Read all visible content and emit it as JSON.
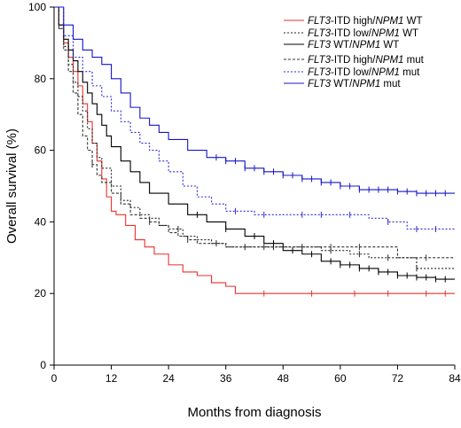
{
  "chart_data": {
    "type": "line",
    "title": "",
    "xlabel": "Months from diagnosis",
    "ylabel": "Overall survival (%)",
    "xlim": [
      0,
      84
    ],
    "ylim": [
      0,
      100
    ],
    "x_ticks": [
      "0",
      "12",
      "24",
      "36",
      "48",
      "60",
      "72",
      "84"
    ],
    "y_ticks": [
      "0",
      "20",
      "40",
      "60",
      "80",
      "100"
    ],
    "legend_position": "top-right",
    "series": [
      {
        "key": "itd_high_wt",
        "legend": [
          {
            "t": "FLT3",
            "i": true
          },
          {
            "t": "-ITD high/",
            "i": false
          },
          {
            "t": "NPM1",
            "i": true
          },
          {
            "t": " WT",
            "i": false
          }
        ],
        "color": "#e8322f",
        "dash": "solid",
        "x": [
          0,
          1,
          2,
          3,
          4,
          5,
          6,
          7,
          8,
          9,
          10,
          11,
          12,
          13,
          15,
          17,
          19,
          21,
          24,
          27,
          30,
          33,
          36,
          38,
          42,
          50,
          60,
          70,
          84
        ],
        "y": [
          100,
          95,
          90,
          86,
          82,
          78,
          73,
          68,
          62,
          57,
          52,
          47,
          43,
          42,
          39,
          35,
          33,
          31,
          28,
          26,
          25,
          23,
          22,
          20,
          20,
          20,
          20,
          20,
          20
        ],
        "censor_x": [
          44,
          54,
          63,
          70,
          78,
          82
        ]
      },
      {
        "key": "itd_low_wt",
        "legend": [
          {
            "t": "FLT3",
            "i": true
          },
          {
            "t": "-ITD low/",
            "i": false
          },
          {
            "t": "NPM1",
            "i": true
          },
          {
            "t": " WT",
            "i": false
          }
        ],
        "color": "#222222",
        "dash": "dotted",
        "x": [
          0,
          1,
          2,
          3,
          4,
          5,
          6,
          7,
          8,
          9,
          10,
          12,
          14,
          16,
          18,
          20,
          22,
          24,
          27,
          30,
          33,
          36,
          40,
          44,
          48,
          56,
          62,
          66,
          72,
          76,
          84
        ],
        "y": [
          100,
          94,
          89,
          84,
          79,
          75,
          71,
          66,
          62,
          58,
          55,
          50,
          46,
          44,
          42,
          41,
          39,
          38,
          36,
          35,
          34,
          33,
          33,
          33,
          33,
          32,
          31,
          30,
          30,
          27,
          27
        ],
        "censor_x": [
          26,
          34,
          40,
          46,
          52,
          58,
          64,
          70,
          76
        ]
      },
      {
        "key": "wt_wt",
        "legend": [
          {
            "t": "FLT3",
            "i": true
          },
          {
            "t": " WT/",
            "i": false
          },
          {
            "t": "NPM1",
            "i": true
          },
          {
            "t": " WT",
            "i": false
          }
        ],
        "color": "#000000",
        "dash": "solid",
        "x": [
          0,
          1,
          2,
          3,
          4,
          5,
          6,
          7,
          8,
          9,
          10,
          11,
          12,
          14,
          16,
          18,
          20,
          24,
          28,
          32,
          36,
          40,
          44,
          48,
          52,
          56,
          60,
          64,
          68,
          72,
          76,
          80,
          84
        ],
        "y": [
          100,
          95,
          91,
          88,
          85,
          82,
          79,
          76,
          73,
          70,
          67,
          64,
          61,
          57,
          54,
          51,
          48,
          45,
          42,
          40,
          38,
          36,
          34,
          32,
          31,
          29,
          28,
          27,
          26,
          25,
          24.5,
          24,
          24
        ],
        "censor_x": [
          30,
          36,
          42,
          46,
          50,
          54,
          58,
          60,
          62,
          64,
          66,
          68,
          70,
          72,
          74,
          76,
          78,
          80,
          82
        ]
      },
      {
        "key": "itd_high_mut",
        "legend": [
          {
            "t": "FLT3",
            "i": true
          },
          {
            "t": "-ITD high/",
            "i": false
          },
          {
            "t": "NPM1",
            "i": true
          },
          {
            "t": " mut",
            "i": false
          }
        ],
        "color": "#333333",
        "dash": "dashed",
        "x": [
          0,
          1,
          2,
          3,
          4,
          5,
          6,
          7,
          8,
          9,
          10,
          12,
          14,
          16,
          18,
          20,
          22,
          24,
          26,
          28,
          30,
          32,
          36,
          42,
          50,
          60,
          68,
          72,
          84
        ],
        "y": [
          100,
          94,
          88,
          82,
          76,
          70,
          64,
          60,
          56,
          53,
          51,
          48,
          45,
          42,
          41,
          40,
          39,
          37,
          36,
          35,
          34,
          34,
          33,
          33,
          33,
          33,
          33,
          30,
          30
        ],
        "censor_x": [
          8,
          20,
          28,
          34,
          44,
          58,
          64,
          78
        ]
      },
      {
        "key": "itd_low_mut",
        "legend": [
          {
            "t": "FLT3",
            "i": true
          },
          {
            "t": "-ITD low/",
            "i": false
          },
          {
            "t": "NPM1",
            "i": true
          },
          {
            "t": " mut",
            "i": false
          }
        ],
        "color": "#2b2bd6",
        "dash": "dotted",
        "x": [
          0,
          2,
          4,
          6,
          8,
          10,
          12,
          14,
          16,
          18,
          20,
          22,
          24,
          27,
          30,
          33,
          36,
          42,
          50,
          60,
          66,
          70,
          74,
          84
        ],
        "y": [
          100,
          92,
          86,
          82,
          78,
          75,
          71,
          68,
          65,
          62,
          60,
          57,
          54,
          50,
          47,
          45,
          43,
          42,
          42,
          42,
          41,
          40,
          38,
          38
        ],
        "censor_x": [
          38,
          44,
          52,
          56,
          62,
          70,
          76,
          80
        ]
      },
      {
        "key": "wt_mut",
        "legend": [
          {
            "t": "FLT3",
            "i": true
          },
          {
            "t": " WT/",
            "i": false
          },
          {
            "t": "NPM1",
            "i": true
          },
          {
            "t": " mut",
            "i": false
          }
        ],
        "color": "#1515c8",
        "dash": "solid",
        "x": [
          0,
          2,
          4,
          6,
          8,
          10,
          12,
          14,
          16,
          18,
          20,
          22,
          24,
          28,
          32,
          36,
          40,
          44,
          48,
          52,
          56,
          60,
          64,
          68,
          72,
          76,
          80,
          84
        ],
        "y": [
          100,
          95,
          91,
          88,
          86,
          84,
          80,
          76,
          72,
          69,
          67,
          65,
          63,
          60,
          58,
          57,
          55,
          54,
          53,
          52,
          51,
          50,
          49,
          49,
          48.5,
          48,
          48,
          48
        ],
        "censor_x": [
          34,
          36,
          38,
          40,
          42,
          44,
          46,
          48,
          50,
          52,
          54,
          56,
          58,
          60,
          62,
          64,
          66,
          68,
          70,
          72,
          74,
          76,
          78,
          80,
          82
        ]
      }
    ]
  }
}
